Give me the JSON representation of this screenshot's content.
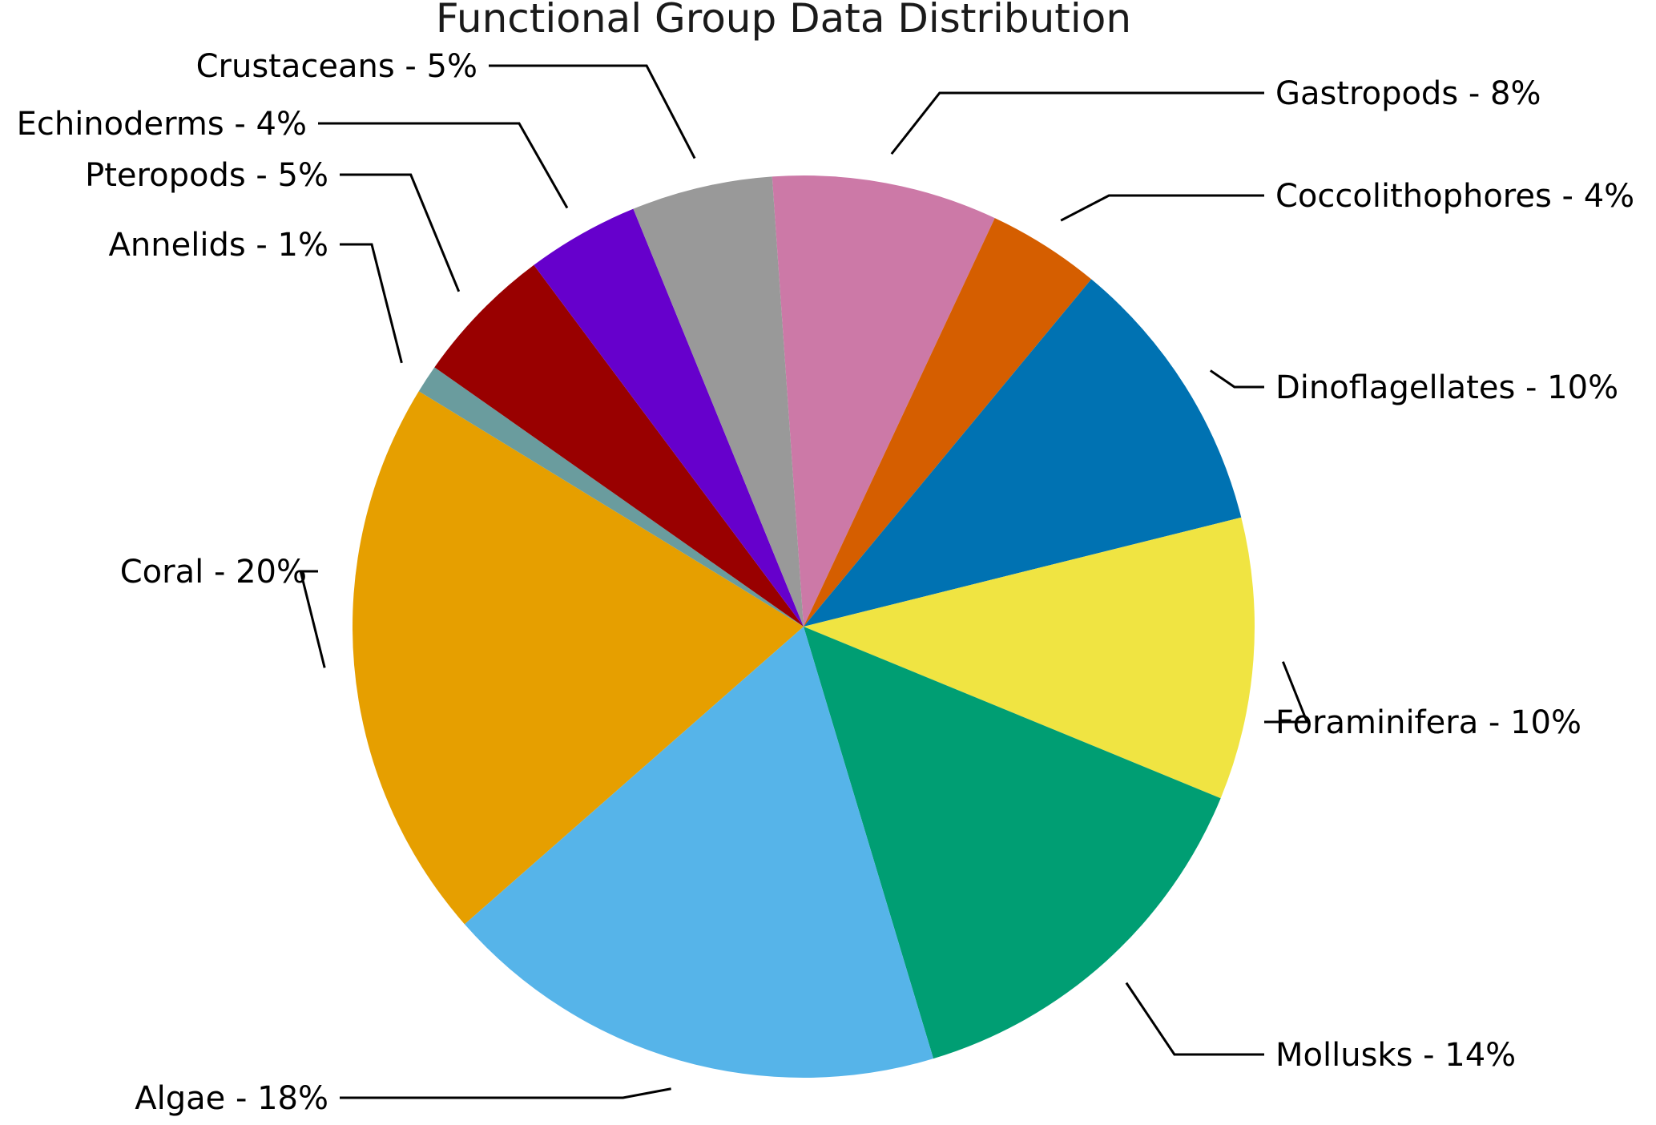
{
  "chart_data": {
    "type": "pie",
    "title": "Functional Group Data Distribution",
    "label_format": "{name} - {value}%",
    "start_angle_deg": -94,
    "direction": "clockwise",
    "slices": [
      {
        "name": "Gastropods",
        "value": 8,
        "color": "#CC79A7"
      },
      {
        "name": "Coccolithophores",
        "value": 4,
        "color": "#D55E00"
      },
      {
        "name": "Dinoflagellates",
        "value": 10,
        "color": "#0072B2"
      },
      {
        "name": "Foraminifera",
        "value": 10,
        "color": "#F0E442"
      },
      {
        "name": "Mollusks",
        "value": 14,
        "color": "#009E73"
      },
      {
        "name": "Algae",
        "value": 18,
        "color": "#56B4E9"
      },
      {
        "name": "Coral",
        "value": 20,
        "color": "#E69F00"
      },
      {
        "name": "Annelids",
        "value": 1,
        "color": "#6A9C9E"
      },
      {
        "name": "Pteropods",
        "value": 5,
        "color": "#990000"
      },
      {
        "name": "Echinoderms",
        "value": 4,
        "color": "#6600CC"
      },
      {
        "name": "Crustaceans",
        "value": 5,
        "color": "#999999"
      }
    ]
  }
}
